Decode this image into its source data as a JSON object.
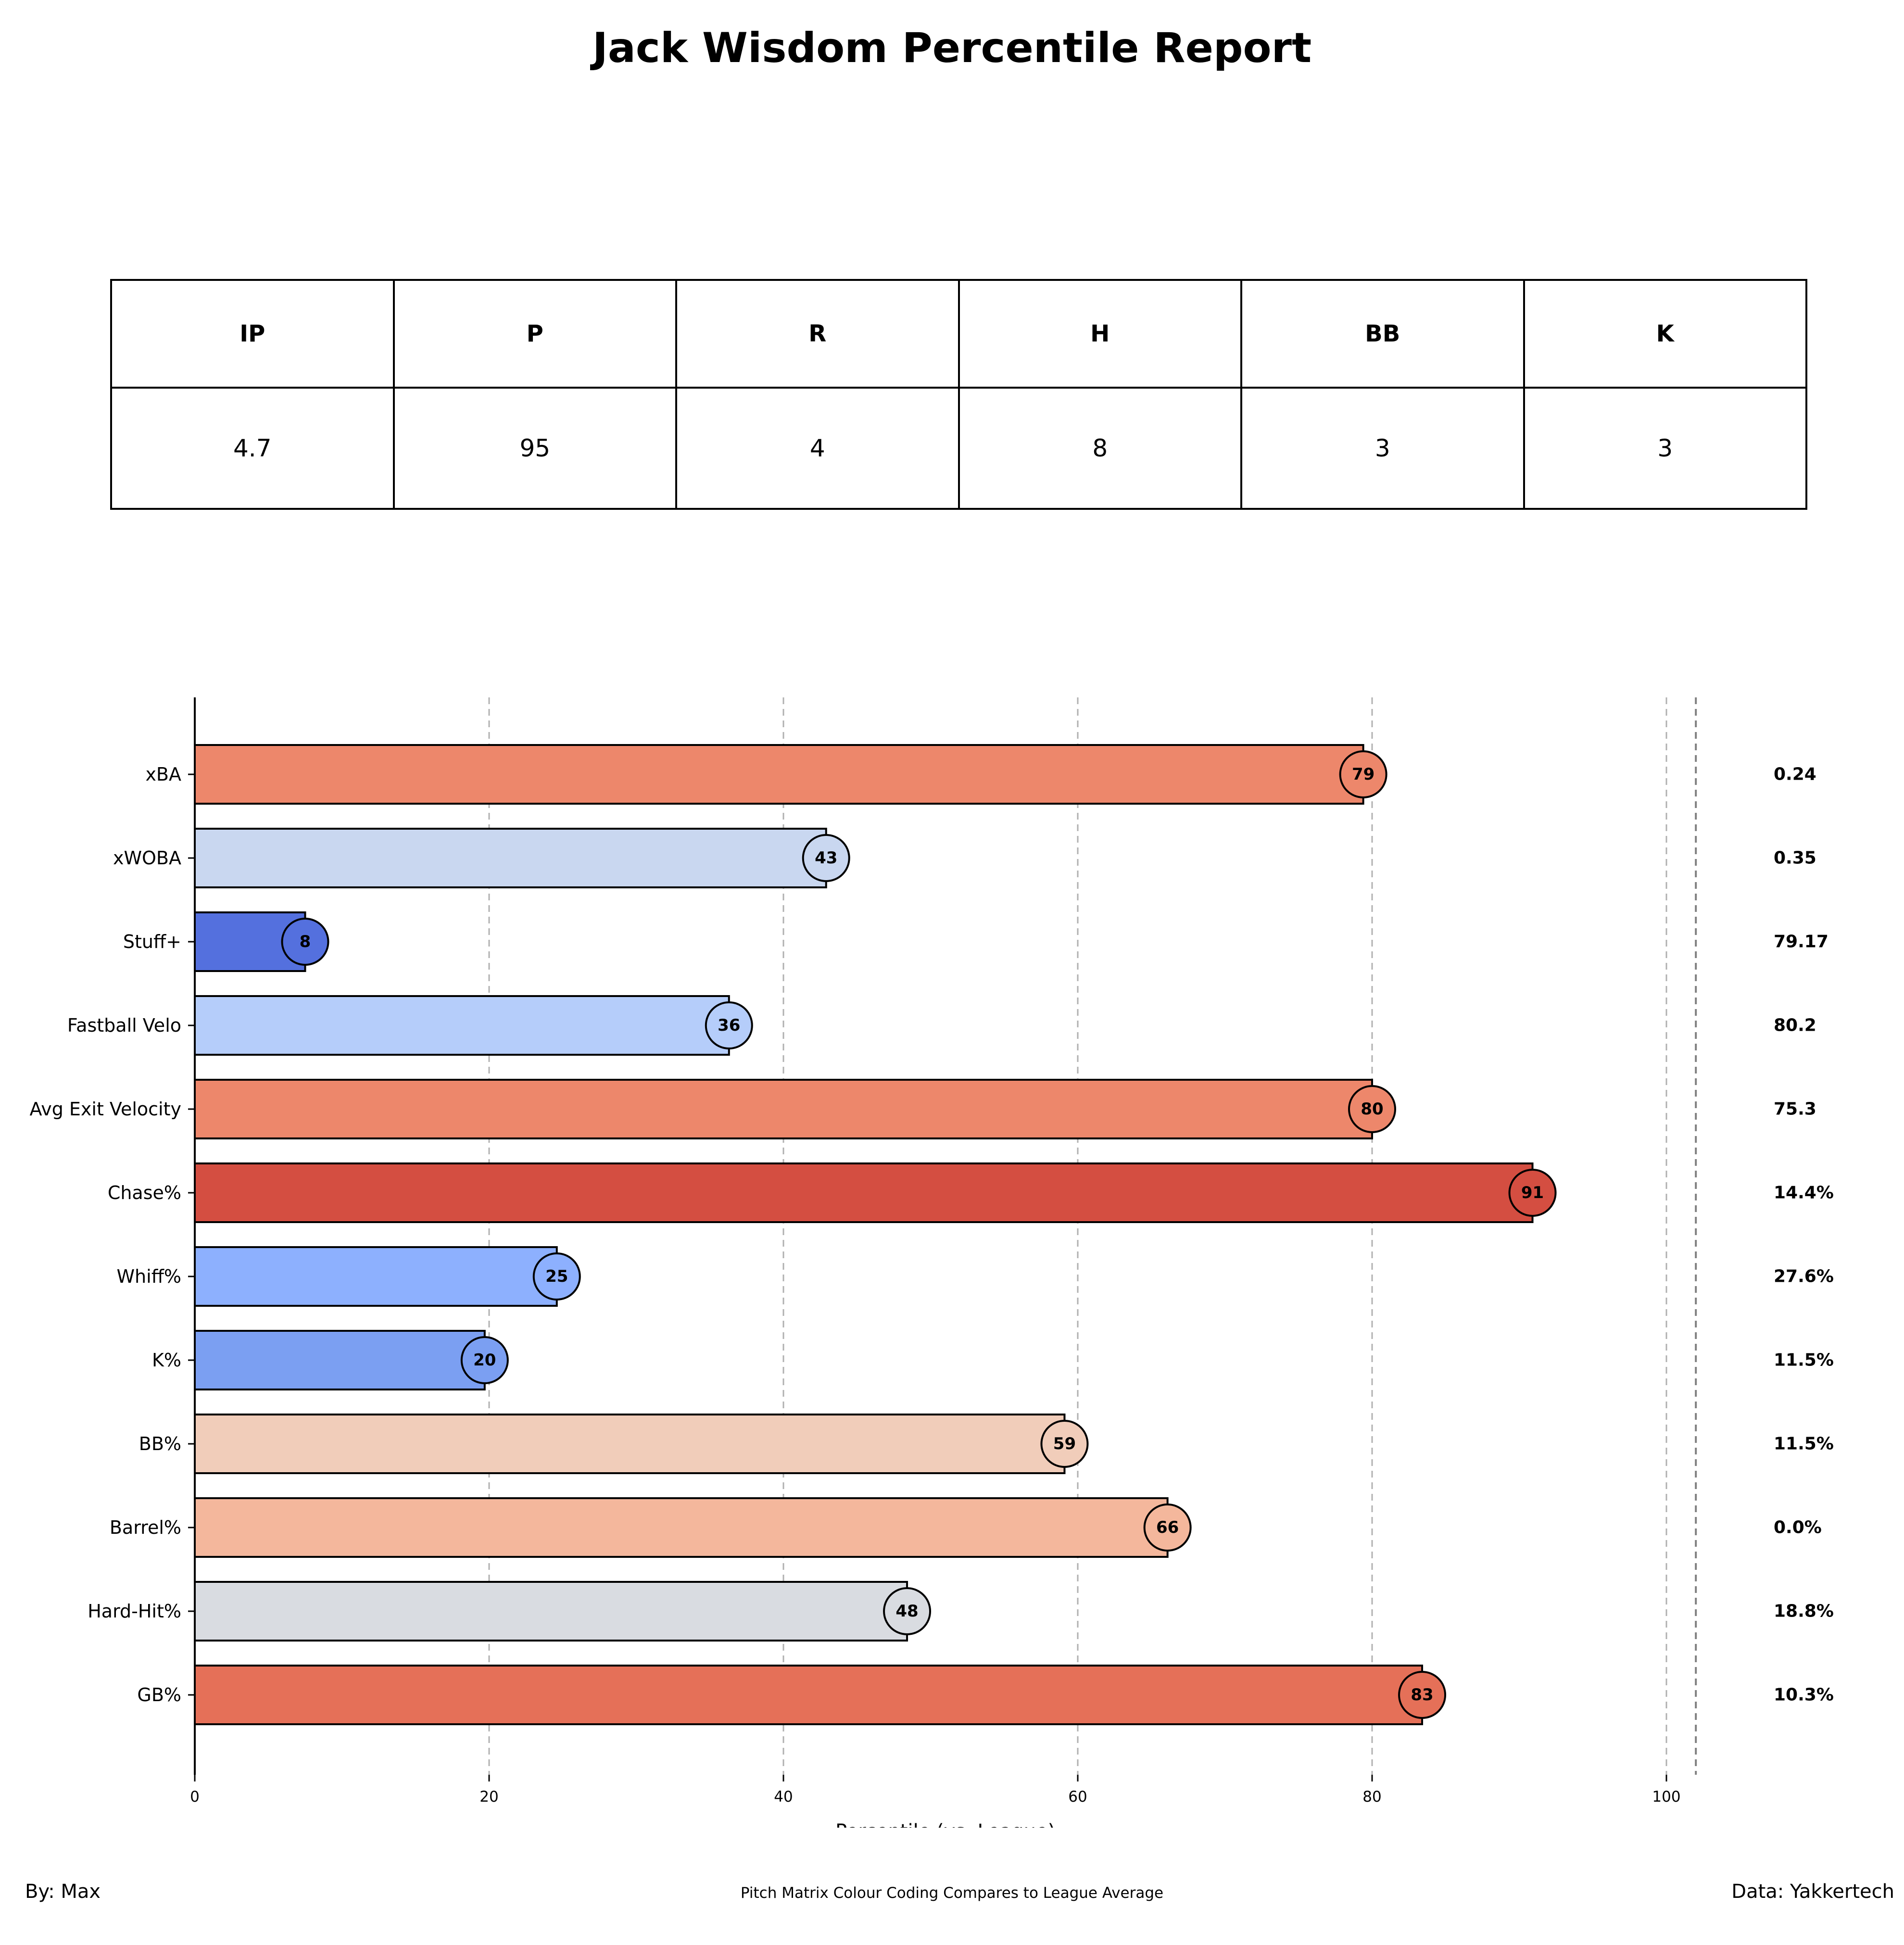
{
  "title": "Jack Wisdom Percentile Report",
  "stats_table": {
    "headers": [
      "IP",
      "P",
      "R",
      "H",
      "BB",
      "K"
    ],
    "values": [
      "4.7",
      "95",
      "4",
      "8",
      "3",
      "3"
    ]
  },
  "chart_data": {
    "type": "bar",
    "orientation": "horizontal",
    "xlabel": "Percentile (vs. League)",
    "xlim": [
      0,
      102
    ],
    "xticks": [
      0,
      20,
      40,
      60,
      80,
      100
    ],
    "grid": "vertical dashed",
    "categories": [
      "xBA",
      "xWOBA",
      "Stuff+",
      "Fastball Velo",
      "Avg Exit Velocity",
      "Chase%",
      "Whiff%",
      "K%",
      "BB%",
      "Barrel%",
      "Hard-Hit%",
      "GB%"
    ],
    "values": [
      79.4,
      42.9,
      7.5,
      36.3,
      80,
      90.9,
      24.6,
      19.7,
      59.1,
      66.1,
      48.4,
      83.4
    ],
    "labels": [
      "79",
      "43",
      "8",
      "36",
      "80",
      "91",
      "25",
      "20",
      "59",
      "66",
      "48",
      "83"
    ],
    "raw_values": [
      "0.24",
      "0.35",
      "79.17",
      "80.2",
      "75.3",
      "14.4%",
      "27.6%",
      "11.5%",
      "11.5%",
      "0.0%",
      "18.8%",
      "10.3%"
    ],
    "colors": [
      "#ed876b",
      "#c9d7f0",
      "#5470de",
      "#b5cdfa",
      "#ed876b",
      "#d44e41",
      "#8db0fe",
      "#7b9ff2",
      "#f1cdba",
      "#f4b79c",
      "#d9dce1",
      "#e57058"
    ]
  },
  "footer": {
    "left": "By: Max",
    "center": "Pitch Matrix Colour Coding Compares to League Average",
    "right": "Data: Yakkertech"
  }
}
